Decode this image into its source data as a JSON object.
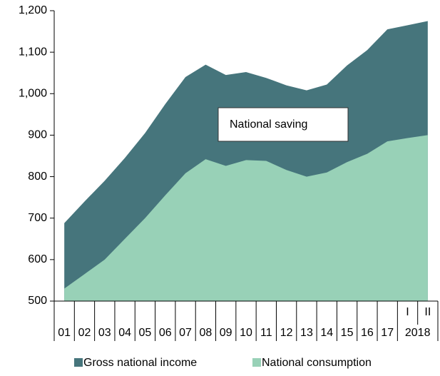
{
  "chart_data": {
    "type": "area",
    "categories": [
      "01",
      "02",
      "03",
      "04",
      "05",
      "06",
      "07",
      "08",
      "09",
      "10",
      "11",
      "12",
      "13",
      "14",
      "15",
      "16",
      "17",
      "I",
      "II"
    ],
    "year_label": "2018",
    "series": [
      {
        "name": "Gross national income",
        "color": "#46757c",
        "values": [
          688,
          740,
          790,
          845,
          905,
          975,
          1040,
          1070,
          1045,
          1052,
          1038,
          1020,
          1008,
          1022,
          1068,
          1105,
          1155,
          1165,
          1175
        ]
      },
      {
        "name": "National consumption",
        "color": "#98d1b7",
        "values": [
          530,
          565,
          600,
          650,
          700,
          755,
          808,
          842,
          826,
          840,
          838,
          816,
          800,
          810,
          835,
          855,
          885,
          893,
          900
        ]
      }
    ],
    "annotation": "National saving",
    "ylim": [
      500,
      1200
    ],
    "yticks": [
      500,
      600,
      700,
      800,
      900,
      {
        "value": 1000,
        "label": "1,000"
      },
      {
        "value": 1100,
        "label": "1,100"
      },
      {
        "value": 1200,
        "label": "1,200"
      }
    ]
  }
}
